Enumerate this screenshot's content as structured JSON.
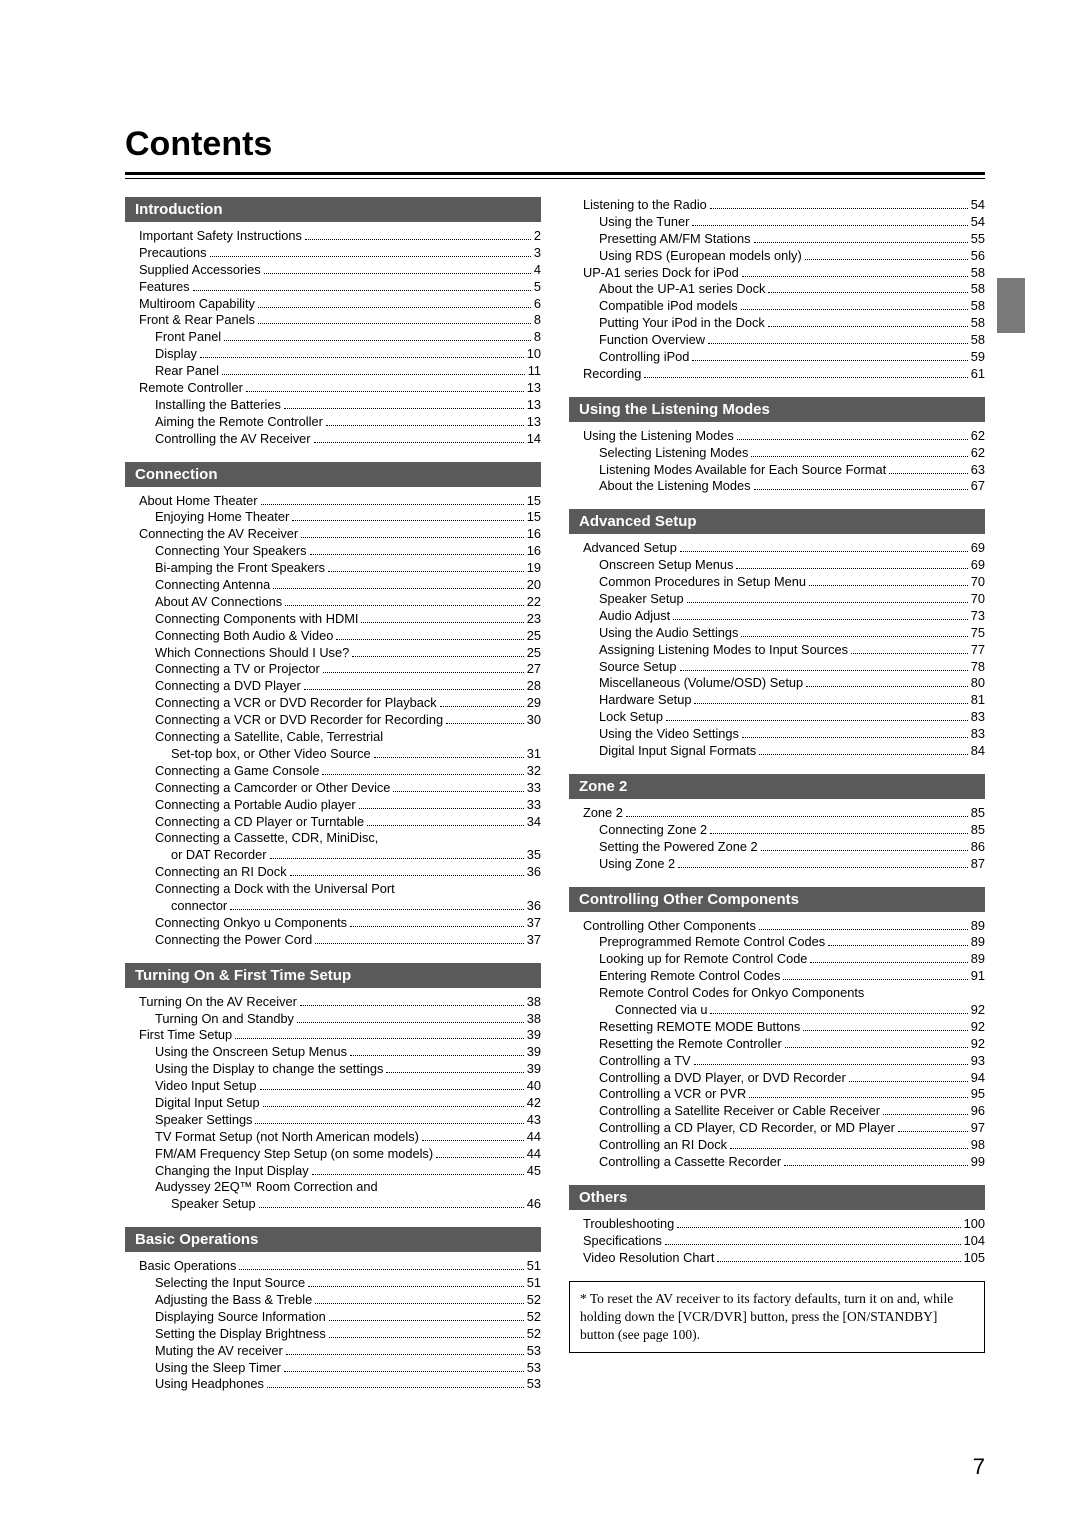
{
  "title": "Contents",
  "page_number": "7",
  "footnote": "*  To reset the AV receiver to its factory defaults, turn it on and, while holding down the [VCR/DVR] button, press the [ON/STANDBY] button (see page 100).",
  "left": [
    {
      "heading": "Introduction",
      "items": [
        {
          "t": "Important Safety Instructions",
          "p": "2",
          "i": 0
        },
        {
          "t": "Precautions",
          "p": "3",
          "i": 0
        },
        {
          "t": "Supplied Accessories",
          "p": "4",
          "i": 0
        },
        {
          "t": "Features",
          "p": "5",
          "i": 0
        },
        {
          "t": "Multiroom Capability",
          "p": "6",
          "i": 0
        },
        {
          "t": "Front & Rear Panels",
          "p": "8",
          "i": 0
        },
        {
          "t": "Front Panel",
          "p": "8",
          "i": 1
        },
        {
          "t": "Display",
          "p": "10",
          "i": 1
        },
        {
          "t": "Rear Panel",
          "p": "11",
          "i": 1
        },
        {
          "t": "Remote Controller",
          "p": "13",
          "i": 0
        },
        {
          "t": "Installing the Batteries",
          "p": "13",
          "i": 1
        },
        {
          "t": "Aiming the Remote Controller",
          "p": "13",
          "i": 1
        },
        {
          "t": "Controlling the AV Receiver",
          "p": "14",
          "i": 1
        }
      ]
    },
    {
      "heading": "Connection",
      "items": [
        {
          "t": "About Home Theater",
          "p": "15",
          "i": 0
        },
        {
          "t": "Enjoying Home Theater",
          "p": "15",
          "i": 1
        },
        {
          "t": "Connecting the AV Receiver",
          "p": "16",
          "i": 0
        },
        {
          "t": "Connecting Your Speakers",
          "p": "16",
          "i": 1
        },
        {
          "t": "Bi-amping the Front Speakers",
          "p": "19",
          "i": 1
        },
        {
          "t": "Connecting Antenna",
          "p": "20",
          "i": 1
        },
        {
          "t": "About AV Connections",
          "p": "22",
          "i": 1
        },
        {
          "t": "Connecting Components with HDMI",
          "p": "23",
          "i": 1
        },
        {
          "t": "Connecting Both Audio & Video",
          "p": "25",
          "i": 1
        },
        {
          "t": "Which Connections Should I Use?",
          "p": "25",
          "i": 1
        },
        {
          "t": "Connecting a TV or Projector",
          "p": "27",
          "i": 1
        },
        {
          "t": "Connecting a DVD Player",
          "p": "28",
          "i": 1
        },
        {
          "t": "Connecting a VCR or DVD Recorder for Playback",
          "p": "29",
          "i": 1
        },
        {
          "t": "Connecting a VCR or DVD Recorder for Recording",
          "p": "30",
          "i": 1
        },
        {
          "t": "Connecting a Satellite, Cable, Terrestrial",
          "nopage": true,
          "i": 1
        },
        {
          "t": "Set-top box, or Other Video Source",
          "p": "31",
          "i": 2
        },
        {
          "t": "Connecting a Game Console",
          "p": "32",
          "i": 1
        },
        {
          "t": "Connecting a Camcorder or Other Device",
          "p": "33",
          "i": 1
        },
        {
          "t": "Connecting a Portable Audio player",
          "p": "33",
          "i": 1
        },
        {
          "t": "Connecting a CD Player or Turntable",
          "p": "34",
          "i": 1
        },
        {
          "t": "Connecting a Cassette, CDR, MiniDisc,",
          "nopage": true,
          "i": 1
        },
        {
          "t": "or DAT Recorder",
          "p": "35",
          "i": 2
        },
        {
          "t": "Connecting an RI Dock",
          "p": "36",
          "i": 1
        },
        {
          "t": "Connecting a Dock with the Universal Port",
          "nopage": true,
          "i": 1
        },
        {
          "t": "connector",
          "p": "36",
          "i": 2
        },
        {
          "t": "Connecting Onkyo  u  Components",
          "p": "37",
          "i": 1
        },
        {
          "t": "Connecting the Power Cord",
          "p": "37",
          "i": 1
        }
      ]
    },
    {
      "heading": "Turning On & First Time Setup",
      "items": [
        {
          "t": "Turning On the AV Receiver",
          "p": "38",
          "i": 0
        },
        {
          "t": "Turning On and Standby",
          "p": "38",
          "i": 1
        },
        {
          "t": "First Time Setup",
          "p": "39",
          "i": 0
        },
        {
          "t": "Using the Onscreen Setup Menus",
          "p": "39",
          "i": 1
        },
        {
          "t": "Using the Display to change the settings",
          "p": "39",
          "i": 1
        },
        {
          "t": "Video Input Setup",
          "p": "40",
          "i": 1
        },
        {
          "t": "Digital Input Setup",
          "p": "42",
          "i": 1
        },
        {
          "t": "Speaker Settings",
          "p": "43",
          "i": 1
        },
        {
          "t": "TV Format Setup (not North American models)",
          "p": "44",
          "i": 1
        },
        {
          "t": "FM/AM Frequency Step Setup (on some models)",
          "p": "44",
          "i": 1
        },
        {
          "t": "Changing the Input Display",
          "p": "45",
          "i": 1
        },
        {
          "t": "Audyssey 2EQ™ Room Correction and",
          "nopage": true,
          "i": 1
        },
        {
          "t": "Speaker Setup",
          "p": "46",
          "i": 2
        }
      ]
    },
    {
      "heading": "Basic Operations",
      "items": [
        {
          "t": "Basic Operations",
          "p": "51",
          "i": 0
        },
        {
          "t": "Selecting the Input Source",
          "p": "51",
          "i": 1
        },
        {
          "t": "Adjusting the Bass & Treble",
          "p": "52",
          "i": 1
        },
        {
          "t": "Displaying Source Information",
          "p": "52",
          "i": 1
        },
        {
          "t": "Setting the Display Brightness",
          "p": "52",
          "i": 1
        },
        {
          "t": "Muting the AV receiver",
          "p": "53",
          "i": 1
        },
        {
          "t": "Using the Sleep Timer",
          "p": "53",
          "i": 1
        },
        {
          "t": "Using Headphones",
          "p": "53",
          "i": 1
        }
      ]
    }
  ],
  "right": [
    {
      "items": [
        {
          "t": "Listening to the Radio",
          "p": "54",
          "i": 0
        },
        {
          "t": "Using the Tuner",
          "p": "54",
          "i": 1
        },
        {
          "t": "Presetting AM/FM Stations",
          "p": "55",
          "i": 1
        },
        {
          "t": "Using RDS (European models only)",
          "p": "56",
          "i": 1
        },
        {
          "t": "UP-A1 series Dock for iPod",
          "p": "58",
          "i": 0
        },
        {
          "t": "About the UP-A1 series Dock",
          "p": "58",
          "i": 1
        },
        {
          "t": "Compatible iPod models",
          "p": "58",
          "i": 1
        },
        {
          "t": "Putting Your iPod in the Dock",
          "p": "58",
          "i": 1
        },
        {
          "t": "Function Overview",
          "p": "58",
          "i": 1
        },
        {
          "t": "Controlling iPod",
          "p": "59",
          "i": 1
        },
        {
          "t": "Recording",
          "p": "61",
          "i": 0
        }
      ]
    },
    {
      "heading": "Using the Listening Modes",
      "items": [
        {
          "t": "Using the Listening Modes",
          "p": "62",
          "i": 0
        },
        {
          "t": "Selecting Listening Modes",
          "p": "62",
          "i": 1
        },
        {
          "t": "Listening Modes Available for Each Source Format",
          "p": "63",
          "i": 1
        },
        {
          "t": "About the Listening Modes",
          "p": "67",
          "i": 1
        }
      ]
    },
    {
      "heading": "Advanced Setup",
      "items": [
        {
          "t": "Advanced Setup",
          "p": "69",
          "i": 0
        },
        {
          "t": "Onscreen Setup Menus",
          "p": "69",
          "i": 1
        },
        {
          "t": "Common Procedures in Setup Menu",
          "p": "70",
          "i": 1
        },
        {
          "t": "Speaker Setup",
          "p": "70",
          "i": 1
        },
        {
          "t": "Audio Adjust",
          "p": "73",
          "i": 1
        },
        {
          "t": "Using the Audio Settings",
          "p": "75",
          "i": 1
        },
        {
          "t": "Assigning Listening Modes to Input Sources",
          "p": "77",
          "i": 1
        },
        {
          "t": "Source Setup",
          "p": "78",
          "i": 1
        },
        {
          "t": "Miscellaneous (Volume/OSD) Setup",
          "p": "80",
          "i": 1
        },
        {
          "t": "Hardware Setup",
          "p": "81",
          "i": 1
        },
        {
          "t": "Lock Setup",
          "p": "83",
          "i": 1
        },
        {
          "t": "Using the Video Settings",
          "p": "83",
          "i": 1
        },
        {
          "t": "Digital Input Signal Formats",
          "p": "84",
          "i": 1
        }
      ]
    },
    {
      "heading": "Zone 2",
      "items": [
        {
          "t": "Zone 2",
          "p": "85",
          "i": 0
        },
        {
          "t": "Connecting Zone 2",
          "p": "85",
          "i": 1
        },
        {
          "t": "Setting the Powered Zone 2",
          "p": "86",
          "i": 1
        },
        {
          "t": "Using Zone 2",
          "p": "87",
          "i": 1
        }
      ]
    },
    {
      "heading": "Controlling Other Components",
      "items": [
        {
          "t": "Controlling Other Components",
          "p": "89",
          "i": 0
        },
        {
          "t": "Preprogrammed Remote Control Codes",
          "p": "89",
          "i": 1
        },
        {
          "t": "Looking up for Remote Control Code",
          "p": "89",
          "i": 1
        },
        {
          "t": "Entering Remote Control Codes",
          "p": "91",
          "i": 1
        },
        {
          "t": "Remote Control Codes for Onkyo Components",
          "nopage": true,
          "i": 1
        },
        {
          "t": "Connected via  u",
          "p": "92",
          "i": 2
        },
        {
          "t": "Resetting REMOTE MODE Buttons",
          "p": "92",
          "i": 1
        },
        {
          "t": "Resetting the Remote Controller",
          "p": "92",
          "i": 1
        },
        {
          "t": "Controlling a TV",
          "p": "93",
          "i": 1
        },
        {
          "t": "Controlling a DVD Player, or DVD Recorder",
          "p": "94",
          "i": 1
        },
        {
          "t": "Controlling a VCR or PVR",
          "p": "95",
          "i": 1
        },
        {
          "t": "Controlling a Satellite Receiver or Cable Receiver",
          "p": "96",
          "i": 1
        },
        {
          "t": "Controlling a CD Player, CD Recorder, or MD Player",
          "p": "97",
          "i": 1
        },
        {
          "t": "Controlling an RI Dock",
          "p": "98",
          "i": 1
        },
        {
          "t": "Controlling a Cassette Recorder",
          "p": "99",
          "i": 1
        }
      ]
    },
    {
      "heading": "Others",
      "items": [
        {
          "t": "Troubleshooting",
          "p": "100",
          "i": 0
        },
        {
          "t": "Specifications",
          "p": "104",
          "i": 0
        },
        {
          "t": "Video Resolution Chart",
          "p": "105",
          "i": 0
        }
      ]
    }
  ]
}
